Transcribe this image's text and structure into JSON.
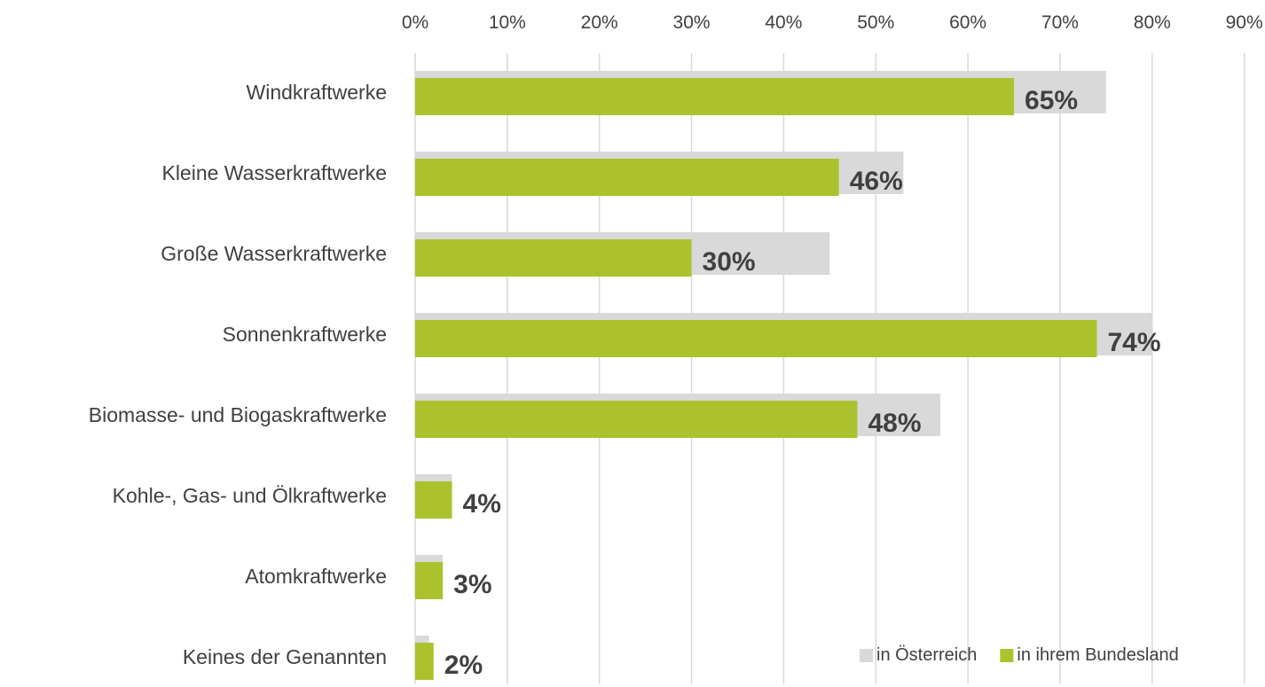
{
  "chart_data": {
    "type": "bar",
    "orientation": "horizontal",
    "categories": [
      "Windkraftwerke",
      "Kleine Wasserkraftwerke",
      "Große Wasserkraftwerke",
      "Sonnenkraftwerke",
      "Biomasse- und Biogaskraftwerke",
      "Kohle-, Gas- und Ölkraftwerke",
      "Atomkraftwerke",
      "Keines der Genannten"
    ],
    "series": [
      {
        "name": "in Österreich",
        "values": [
          75,
          53,
          45,
          80,
          57,
          4,
          3,
          1.5
        ],
        "color": "#d9d9d9"
      },
      {
        "name": "in ihrem Bundesland",
        "values": [
          65,
          46,
          30,
          74,
          48,
          4,
          3,
          2
        ],
        "color": "#acc22c"
      }
    ],
    "data_labels": [
      "65%",
      "46%",
      "30%",
      "74%",
      "48%",
      "4%",
      "3%",
      "2%"
    ],
    "x_ticks": [
      "0%",
      "10%",
      "20%",
      "30%",
      "40%",
      "50%",
      "60%",
      "70%",
      "80%",
      "90%"
    ],
    "xlim": [
      0,
      90
    ],
    "x_axis_position": "top",
    "grid": true,
    "legend_position": "bottom-right",
    "title": "",
    "xlabel": "",
    "ylabel": ""
  }
}
